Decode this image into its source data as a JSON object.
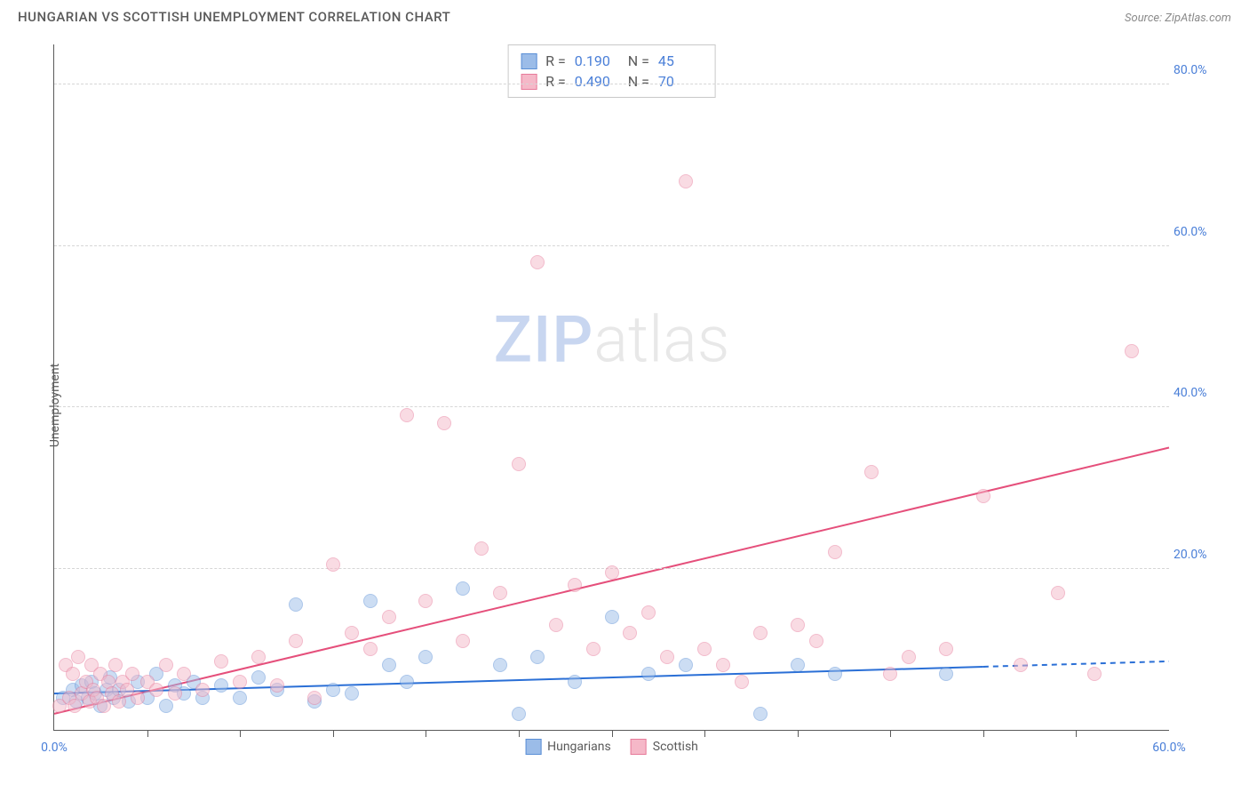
{
  "header": {
    "title": "HUNGARIAN VS SCOTTISH UNEMPLOYMENT CORRELATION CHART",
    "source": "Source: ZipAtlas.com"
  },
  "watermark": {
    "part1": "ZIP",
    "part2": "atlas"
  },
  "chart": {
    "type": "scatter",
    "ylabel": "Unemployment",
    "background_color": "#ffffff",
    "grid_color": "#d6d6d6",
    "axis_color": "#5a5a5a",
    "tick_label_color": "#4a7fd8",
    "xlim": [
      0,
      60
    ],
    "ylim": [
      0,
      85
    ],
    "xtick_step": 5,
    "xticks_labeled": [
      {
        "value": 0,
        "label": "0.0%"
      },
      {
        "value": 60,
        "label": "60.0%"
      }
    ],
    "yticks": [
      {
        "value": 20,
        "label": "20.0%"
      },
      {
        "value": 40,
        "label": "40.0%"
      },
      {
        "value": 60,
        "label": "60.0%"
      },
      {
        "value": 80,
        "label": "80.0%"
      }
    ],
    "marker_radius": 8,
    "marker_opacity": 0.5,
    "series": [
      {
        "name": "Hungarians",
        "fill_color": "#9bbce8",
        "stroke_color": "#5a8fd6",
        "line_color": "#2a6fd6",
        "line_width": 2,
        "r_label": "R =",
        "r_value": "0.190",
        "n_label": "N =",
        "n_value": "45",
        "trend": {
          "x1": 0,
          "y1": 4.5,
          "x2": 60,
          "y2": 8.5,
          "solid_until_x": 50
        },
        "points": [
          [
            0.5,
            4
          ],
          [
            1,
            5
          ],
          [
            1.2,
            3.5
          ],
          [
            1.5,
            5.5
          ],
          [
            1.8,
            4
          ],
          [
            2,
            6
          ],
          [
            2.2,
            4.5
          ],
          [
            2.5,
            3
          ],
          [
            2.8,
            5
          ],
          [
            3,
            6.5
          ],
          [
            3.2,
            4
          ],
          [
            3.5,
            5
          ],
          [
            4,
            3.5
          ],
          [
            4.5,
            6
          ],
          [
            5,
            4
          ],
          [
            5.5,
            7
          ],
          [
            6,
            3
          ],
          [
            6.5,
            5.5
          ],
          [
            7,
            4.5
          ],
          [
            7.5,
            6
          ],
          [
            8,
            4
          ],
          [
            9,
            5.5
          ],
          [
            10,
            4
          ],
          [
            11,
            6.5
          ],
          [
            12,
            5
          ],
          [
            13,
            15.5
          ],
          [
            14,
            3.5
          ],
          [
            15,
            5
          ],
          [
            16,
            4.5
          ],
          [
            17,
            16
          ],
          [
            18,
            8
          ],
          [
            19,
            6
          ],
          [
            20,
            9
          ],
          [
            22,
            17.5
          ],
          [
            24,
            8
          ],
          [
            25,
            2
          ],
          [
            26,
            9
          ],
          [
            28,
            6
          ],
          [
            30,
            14
          ],
          [
            32,
            7
          ],
          [
            34,
            8
          ],
          [
            38,
            2
          ],
          [
            40,
            8
          ],
          [
            42,
            7
          ],
          [
            48,
            7
          ]
        ]
      },
      {
        "name": "Scottish",
        "fill_color": "#f5b8c8",
        "stroke_color": "#e77a9a",
        "line_color": "#e54f7b",
        "line_width": 2,
        "r_label": "R =",
        "r_value": "0.490",
        "n_label": "N =",
        "n_value": "70",
        "trend": {
          "x1": 0,
          "y1": 2,
          "x2": 60,
          "y2": 35,
          "solid_until_x": 60
        },
        "points": [
          [
            0.3,
            3
          ],
          [
            0.6,
            8
          ],
          [
            0.8,
            4
          ],
          [
            1,
            7
          ],
          [
            1.1,
            3
          ],
          [
            1.3,
            9
          ],
          [
            1.5,
            4.5
          ],
          [
            1.7,
            6
          ],
          [
            1.9,
            3.5
          ],
          [
            2,
            8
          ],
          [
            2.1,
            5
          ],
          [
            2.3,
            4
          ],
          [
            2.5,
            7
          ],
          [
            2.7,
            3
          ],
          [
            2.9,
            6
          ],
          [
            3.1,
            4.5
          ],
          [
            3.3,
            8
          ],
          [
            3.5,
            3.5
          ],
          [
            3.7,
            6
          ],
          [
            3.9,
            5
          ],
          [
            4.2,
            7
          ],
          [
            4.5,
            4
          ],
          [
            5,
            6
          ],
          [
            5.5,
            5
          ],
          [
            6,
            8
          ],
          [
            6.5,
            4.5
          ],
          [
            7,
            7
          ],
          [
            8,
            5
          ],
          [
            9,
            8.5
          ],
          [
            10,
            6
          ],
          [
            11,
            9
          ],
          [
            12,
            5.5
          ],
          [
            13,
            11
          ],
          [
            14,
            4
          ],
          [
            15,
            20.5
          ],
          [
            16,
            12
          ],
          [
            17,
            10
          ],
          [
            18,
            14
          ],
          [
            19,
            39
          ],
          [
            20,
            16
          ],
          [
            21,
            38
          ],
          [
            22,
            11
          ],
          [
            23,
            22.5
          ],
          [
            24,
            17
          ],
          [
            25,
            33
          ],
          [
            26,
            58
          ],
          [
            27,
            13
          ],
          [
            28,
            18
          ],
          [
            29,
            10
          ],
          [
            30,
            19.5
          ],
          [
            31,
            12
          ],
          [
            32,
            14.5
          ],
          [
            33,
            9
          ],
          [
            34,
            68
          ],
          [
            35,
            10
          ],
          [
            36,
            8
          ],
          [
            38,
            12
          ],
          [
            40,
            13
          ],
          [
            42,
            22
          ],
          [
            44,
            32
          ],
          [
            46,
            9
          ],
          [
            48,
            10
          ],
          [
            50,
            29
          ],
          [
            52,
            8
          ],
          [
            54,
            17
          ],
          [
            56,
            7
          ],
          [
            58,
            47
          ],
          [
            45,
            7
          ],
          [
            37,
            6
          ],
          [
            41,
            11
          ]
        ]
      }
    ],
    "bottom_legend": [
      {
        "label": "Hungarians",
        "fill": "#9bbce8",
        "stroke": "#5a8fd6"
      },
      {
        "label": "Scottish",
        "fill": "#f5b8c8",
        "stroke": "#e77a9a"
      }
    ]
  }
}
